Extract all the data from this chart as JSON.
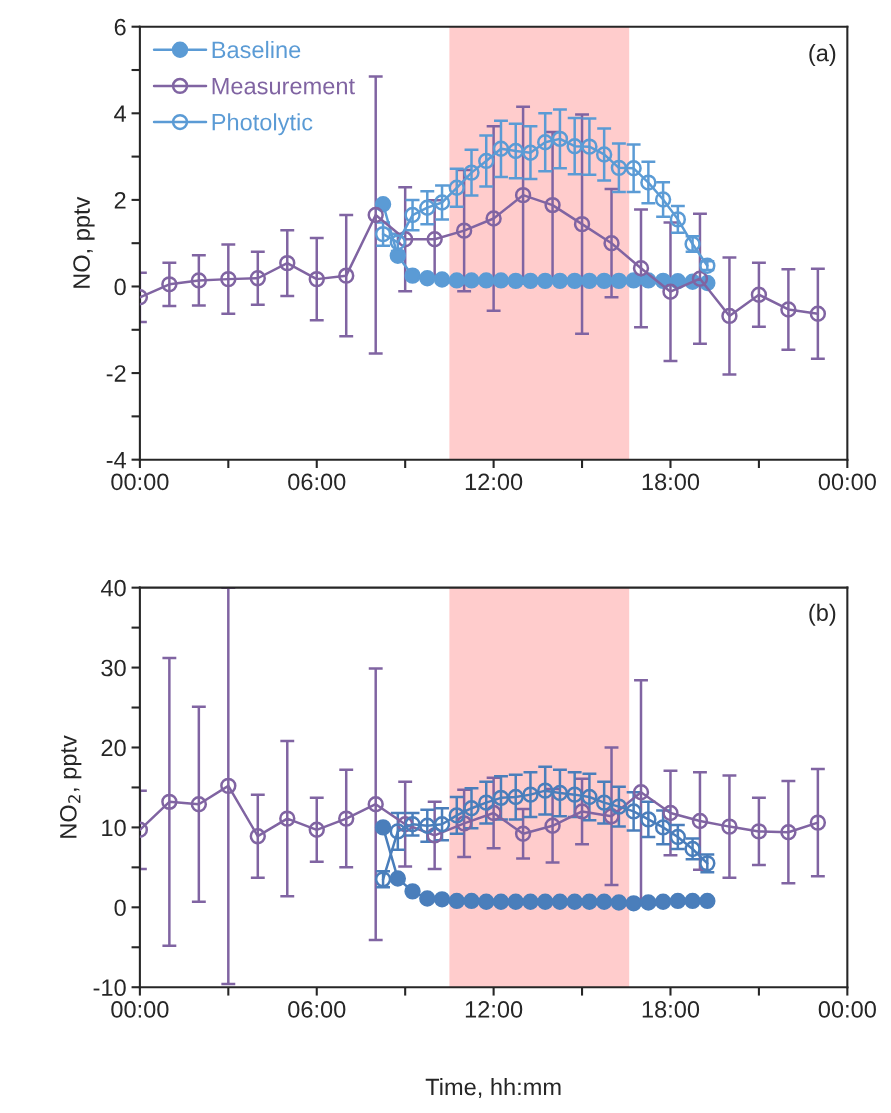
{
  "chart_data": [
    {
      "type": "line",
      "ylabel": "NO, pptv",
      "annotations": [
        "(a)"
      ],
      "xlim": [
        0,
        24
      ],
      "ylim": [
        -4,
        6
      ],
      "xticks": [
        {
          "value": 0,
          "label": "00:00"
        },
        {
          "value": 3,
          "label": null
        },
        {
          "value": 6,
          "label": "06:00"
        },
        {
          "value": 9,
          "label": null
        },
        {
          "value": 12,
          "label": "12:00"
        },
        {
          "value": 15,
          "label": null
        },
        {
          "value": 18,
          "label": "18:00"
        },
        {
          "value": 21,
          "label": null
        },
        {
          "value": 24,
          "label": "00:00"
        }
      ],
      "yticks": [
        -4,
        {
          "value": -3,
          "label": null
        },
        -2,
        {
          "value": -1,
          "label": null
        },
        0,
        {
          "value": 1,
          "label": null
        },
        2,
        {
          "value": 3,
          "label": null
        },
        4,
        {
          "value": 5,
          "label": null
        },
        6
      ],
      "grid": false,
      "legend": "top left",
      "marker": "circle",
      "line_style": "solid",
      "bands": [
        {
          "axis": "x",
          "from": 10.5,
          "to": 16.6,
          "color": "#ffcccc"
        }
      ],
      "series": [
        {
          "name": "Baseline",
          "color": "#5b9bd5",
          "x": [
            8.25,
            8.75,
            9.25,
            9.75,
            10.25,
            10.75,
            11.25,
            11.75,
            12.25,
            12.75,
            13.25,
            13.75,
            14.25,
            14.75,
            15.25,
            15.75,
            16.25,
            16.75,
            17.25,
            17.75,
            18.25,
            18.75,
            19.25
          ],
          "values": [
            1.9,
            0.71,
            0.25,
            0.19,
            0.16,
            0.14,
            0.14,
            0.14,
            0.14,
            0.13,
            0.13,
            0.13,
            0.13,
            0.13,
            0.13,
            0.13,
            0.13,
            0.14,
            0.14,
            0.13,
            0.12,
            0.11,
            0.08
          ]
        },
        {
          "name": "Measurement",
          "color": "#8064a2",
          "x": [
            0,
            1,
            2,
            3,
            4,
            5,
            6,
            7,
            8,
            9,
            10,
            11,
            12,
            13,
            14,
            15,
            16,
            17,
            18,
            19,
            20,
            21,
            22,
            23
          ],
          "values": [
            -0.25,
            0.05,
            0.14,
            0.17,
            0.19,
            0.54,
            0.17,
            0.25,
            1.65,
            1.09,
            1.09,
            1.29,
            1.57,
            2.11,
            1.88,
            1.44,
            1.0,
            0.42,
            -0.12,
            0.18,
            -0.68,
            -0.19,
            -0.53,
            -0.63
          ],
          "errors": [
            0.57,
            0.5,
            0.58,
            0.8,
            0.61,
            0.76,
            0.95,
            1.4,
            3.2,
            1.2,
            0.9,
            1.4,
            2.13,
            2.04,
            1.69,
            2.53,
            1.25,
            1.36,
            1.6,
            1.5,
            1.35,
            0.74,
            0.93,
            1.04
          ]
        },
        {
          "name": "Photolytic",
          "color": "#5b9bd5",
          "x": [
            8.25,
            8.75,
            9.25,
            9.75,
            10.25,
            10.75,
            11.25,
            11.75,
            12.25,
            12.75,
            13.25,
            13.75,
            14.25,
            14.75,
            15.25,
            15.75,
            16.25,
            16.75,
            17.25,
            17.75,
            18.25,
            18.75,
            19.25
          ],
          "values": [
            1.21,
            1.02,
            1.65,
            1.82,
            1.94,
            2.28,
            2.63,
            2.9,
            3.18,
            3.13,
            3.09,
            3.33,
            3.41,
            3.24,
            3.23,
            3.05,
            2.74,
            2.73,
            2.4,
            2.01,
            1.55,
            0.98,
            0.48
          ],
          "errors": [
            0.27,
            0.2,
            0.35,
            0.38,
            0.39,
            0.44,
            0.53,
            0.59,
            0.65,
            0.63,
            0.61,
            0.67,
            0.68,
            0.65,
            0.65,
            0.6,
            0.56,
            0.55,
            0.48,
            0.4,
            0.31,
            0.18,
            0.1
          ]
        }
      ]
    },
    {
      "type": "line",
      "xlabel": "Time, hh:mm",
      "ylabel": "NO$_{2}$, pptv",
      "annotations": [
        "(b)"
      ],
      "xlim": [
        0,
        24
      ],
      "ylim": [
        -10,
        40
      ],
      "xticks": [
        {
          "value": 0,
          "label": "00:00"
        },
        {
          "value": 3,
          "label": null
        },
        {
          "value": 6,
          "label": "06:00"
        },
        {
          "value": 9,
          "label": null
        },
        {
          "value": 12,
          "label": "12:00"
        },
        {
          "value": 15,
          "label": null
        },
        {
          "value": 18,
          "label": "18:00"
        },
        {
          "value": 21,
          "label": null
        },
        {
          "value": 24,
          "label": "00:00"
        }
      ],
      "yticks": [
        -10,
        {
          "value": -5,
          "label": null
        },
        0,
        {
          "value": 5,
          "label": null
        },
        10,
        {
          "value": 15,
          "label": null
        },
        20,
        {
          "value": 25,
          "label": null
        },
        30,
        {
          "value": 35,
          "label": null
        },
        40
      ],
      "grid": false,
      "marker": "circle",
      "line_style": "solid",
      "bands": [
        {
          "axis": "x",
          "from": 10.5,
          "to": 16.6,
          "color": "#ffcccc"
        }
      ],
      "series": [
        {
          "color": "#4a7ebb",
          "x": [
            8.25,
            8.75,
            9.25,
            9.75,
            10.25,
            10.75,
            11.25,
            11.75,
            12.25,
            12.75,
            13.25,
            13.75,
            14.25,
            14.75,
            15.25,
            15.75,
            16.25,
            16.75,
            17.25,
            17.75,
            18.25,
            18.75,
            19.25
          ],
          "values": [
            10.0,
            3.6,
            2.0,
            1.1,
            1.0,
            0.8,
            0.8,
            0.7,
            0.7,
            0.7,
            0.7,
            0.7,
            0.7,
            0.7,
            0.7,
            0.7,
            0.6,
            0.5,
            0.6,
            0.7,
            0.8,
            0.8,
            0.8
          ]
        },
        {
          "color": "#8064a2",
          "x": [
            0,
            1,
            2,
            3,
            4,
            5,
            6,
            7,
            8,
            9,
            10,
            11,
            12,
            13,
            14,
            15,
            16,
            17,
            18,
            19,
            20,
            21,
            22,
            23
          ],
          "values": [
            9.7,
            13.2,
            12.9,
            15.2,
            8.9,
            11.1,
            9.7,
            11.1,
            12.9,
            10.4,
            9.0,
            10.5,
            11.8,
            9.2,
            10.2,
            12.0,
            11.4,
            14.4,
            11.8,
            10.8,
            10.1,
            9.5,
            9.4,
            10.6
          ],
          "errors": [
            4.9,
            18,
            12.2,
            24.8,
            5.2,
            9.7,
            4.0,
            6.1,
            17,
            5.3,
            4.2,
            4.2,
            4.4,
            3.1,
            4.6,
            4.1,
            8.6,
            14,
            5.3,
            6.1,
            6.4,
            4.2,
            6.4,
            6.7
          ]
        },
        {
          "color": "#4a7ebb",
          "x": [
            8.25,
            8.75,
            9.25,
            9.75,
            10.25,
            10.75,
            11.25,
            11.75,
            12.25,
            12.75,
            13.25,
            13.75,
            14.25,
            14.75,
            15.25,
            15.75,
            16.25,
            16.75,
            17.25,
            17.75,
            18.25,
            18.75,
            19.25
          ],
          "values": [
            3.5,
            9.5,
            10.4,
            10.2,
            10.4,
            11.5,
            12.4,
            13.1,
            13.7,
            13.8,
            14.1,
            14.6,
            14.3,
            14.1,
            13.8,
            13.1,
            12.6,
            12.0,
            11.0,
            10.0,
            8.8,
            7.3,
            5.5
          ],
          "errors": [
            1.0,
            2.3,
            1.4,
            2.0,
            2.0,
            2.3,
            2.5,
            2.6,
            2.7,
            2.8,
            2.8,
            3.0,
            2.9,
            2.8,
            2.9,
            2.6,
            2.5,
            2.4,
            2.2,
            2.1,
            1.5,
            1.3,
            1.1
          ]
        }
      ]
    }
  ]
}
